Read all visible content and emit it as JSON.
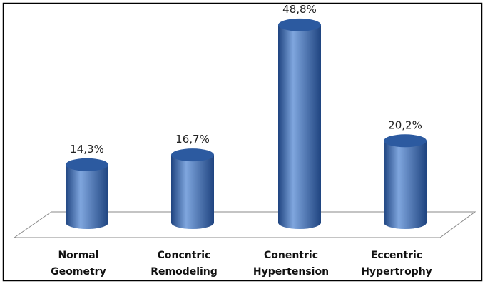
{
  "chart_data": {
    "type": "bar",
    "style": "3d-cylinder",
    "categories": [
      [
        "Normal",
        "Geometry"
      ],
      [
        "Concntric",
        "Remodeling"
      ],
      [
        "Conentric",
        "Hypertension"
      ],
      [
        "Eccentric",
        "Hypertrophy"
      ]
    ],
    "values": [
      14.3,
      16.7,
      48.8,
      20.2
    ],
    "data_labels": [
      "14,3%",
      "16,7%",
      "48,8%",
      "20,2%"
    ],
    "title": "",
    "xlabel": "",
    "ylabel": "",
    "ylim": [
      0,
      55
    ],
    "grid": false,
    "legend": "none",
    "colors": {
      "bar": "#3a6cb8",
      "bar_dark": "#1f4480",
      "bar_light": "#7fa6de",
      "top": "#2c5aa0",
      "floor_stroke": "#8a8a8a",
      "border": "#000000"
    }
  }
}
